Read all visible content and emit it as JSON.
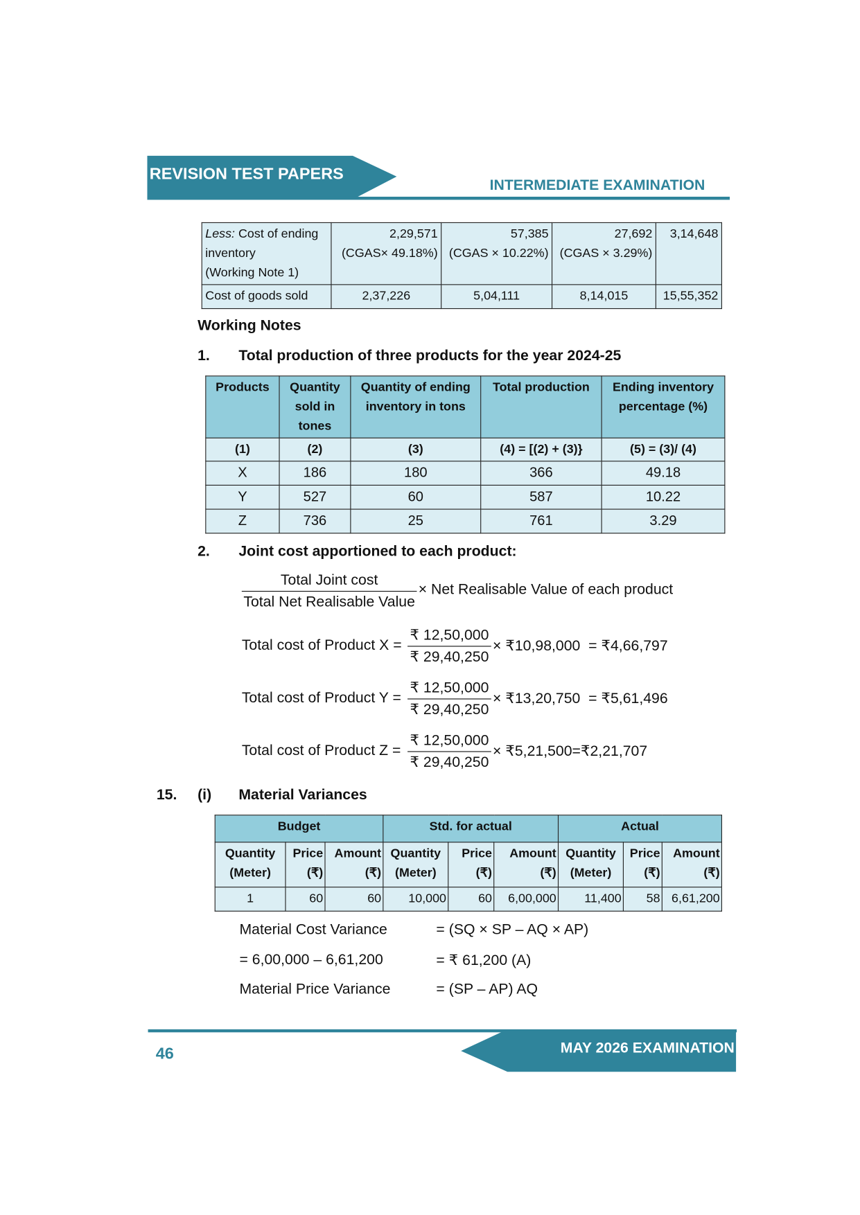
{
  "header": {
    "left_title": "REVISION TEST PAPERS",
    "right_title": "INTERMEDIATE EXAMINATION"
  },
  "cogs_table": {
    "rows": [
      {
        "label_italic": "Less:",
        "label": " Cost of ending inventory",
        "label2": "(Working Note 1)",
        "cells": [
          [
            "2,29,571",
            "(CGAS× 49.18%)"
          ],
          [
            "57,385",
            "(CGAS × 10.22%)"
          ],
          [
            "27,692",
            "(CGAS × 3.29%)"
          ]
        ],
        "total": "3,14,648"
      },
      {
        "label": "Cost of goods sold",
        "cells": [
          "2,37,226",
          "5,04,111",
          "8,14,015"
        ],
        "total": "15,55,352"
      }
    ]
  },
  "working_notes": {
    "heading": "Working Notes",
    "note1": {
      "number": "1.",
      "title": "Total production of three products for the year 2024-25",
      "headers": [
        "Products",
        "Quantity sold in tones",
        "Quantity of ending inventory in tons",
        "Total production",
        "Ending inventory percentage (%)"
      ],
      "subheaders": [
        "(1)",
        "(2)",
        "(3)",
        "(4) = [(2) + (3)}",
        "(5) = (3)/ (4)"
      ],
      "rows": [
        [
          "X",
          "186",
          "180",
          "366",
          "49.18"
        ],
        [
          "Y",
          "527",
          "60",
          "587",
          "10.22"
        ],
        [
          "Z",
          "736",
          "25",
          "761",
          "3.29"
        ]
      ]
    },
    "note2": {
      "number": "2.",
      "title": "Joint cost apportioned to each product:",
      "general": {
        "numerator": "Total Joint cost",
        "denominator": "Total Net Realisable Value",
        "multiplier": "× Net Realisable Value of each product"
      },
      "lines": [
        {
          "label": "Total cost of Product X =",
          "numerator": "₹ 12,50,000",
          "denominator": "₹ 29,40,250",
          "rest": "× ₹10,98,000  = ₹4,66,797"
        },
        {
          "label": "Total cost of Product Y =",
          "numerator": "₹ 12,50,000",
          "denominator": "₹ 29,40,250",
          "rest": "× ₹13,20,750  = ₹5,61,496"
        },
        {
          "label": "Total cost of Product Z =",
          "numerator": "₹ 12,50,000",
          "denominator": "₹ 29,40,250",
          "rest": "× ₹5,21,500=₹2,21,707"
        }
      ]
    }
  },
  "q15": {
    "number": "15.",
    "part": "(i)",
    "title": "Material Variances",
    "groups": [
      "Budget",
      "Std. for actual",
      "Actual"
    ],
    "headers": [
      [
        "Quantity",
        "(Meter)"
      ],
      [
        "Price",
        "(₹)"
      ],
      [
        "Amount",
        "(₹)"
      ],
      [
        "Quantity",
        "(Meter)"
      ],
      [
        "Price",
        "(₹)"
      ],
      [
        "Amount",
        "(₹)"
      ],
      [
        "Quantity",
        "(Meter)"
      ],
      [
        "Price",
        "(₹)"
      ],
      [
        "Amount",
        "(₹)"
      ]
    ],
    "row": [
      "1",
      "60",
      "60",
      "10,000",
      "60",
      "6,00,000",
      "11,400",
      "58",
      "6,61,200"
    ],
    "variances": [
      [
        "Material Cost Variance",
        "= (SQ × SP – AQ × AP)"
      ],
      [
        "= 6,00,000 – 6,61,200",
        "= ₹ 61,200 (A)"
      ],
      [
        "Material Price Variance",
        "= (SP – AP) AQ"
      ]
    ]
  },
  "footer": {
    "page_number": "46",
    "exam": "MAY 2026 EXAMINATION"
  },
  "colors": {
    "brand": "#2f849b",
    "cell": "#dbeef4",
    "header_cell": "#92cddc"
  }
}
